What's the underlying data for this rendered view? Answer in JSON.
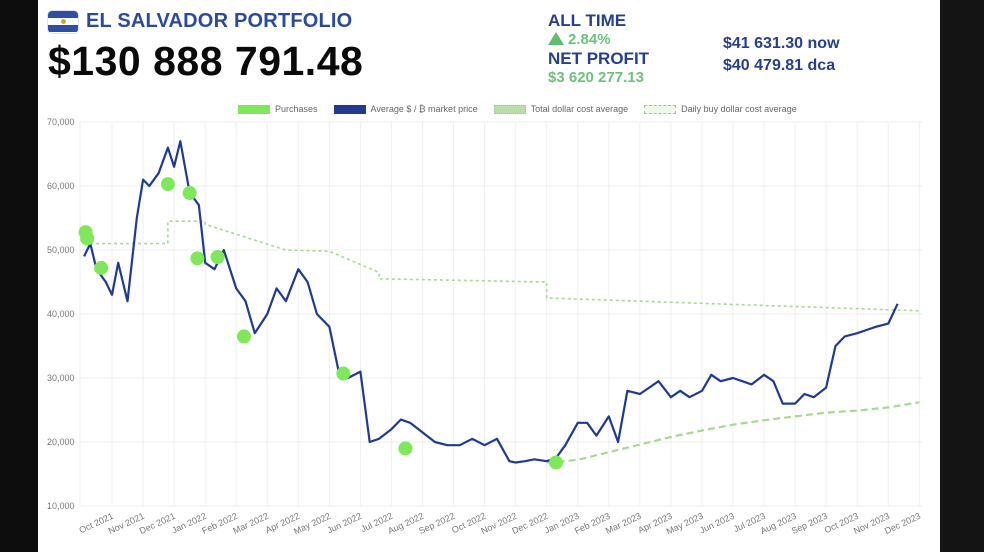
{
  "header": {
    "title": "EL SALVADOR PORTFOLIO",
    "flag_icon": "el-salvador-flag-icon",
    "total_value": "$130 888 791.48"
  },
  "stats": {
    "all_time_label": "ALL TIME",
    "all_time_change": "2.84%",
    "all_time_icon": "triangle-up-icon",
    "net_profit_label": "NET PROFIT",
    "net_profit_value": "$3 620 277.13",
    "price_now": "$41 631.30 now",
    "price_dca": "$40 479.81 dca"
  },
  "colors": {
    "brand_blue": "#2c4a9a",
    "price_line": "#1f3a8f",
    "purchase_dot": "#7ee85a",
    "dca_line": "#a8d98f",
    "positive": "#6cc27a"
  },
  "chart_data": {
    "type": "line",
    "title": "",
    "xlabel": "",
    "ylabel": "",
    "ylim": [
      10000,
      70000
    ],
    "grid": true,
    "legend_position": "top",
    "legend": [
      {
        "label": "Purchases",
        "color": "#7ee85a",
        "style": "solid"
      },
      {
        "label": "Average $ / ₿ market price",
        "color": "#1f3a8f",
        "style": "solid"
      },
      {
        "label": "Total dollar cost average",
        "color": "#a8d98f",
        "style": "dotted"
      },
      {
        "label": "Daily buy dollar cost average",
        "color": "#a8d98f",
        "style": "dashed"
      }
    ],
    "y_ticks": [
      "70,000",
      "60,000",
      "50,000",
      "40,000",
      "30,000",
      "20,000",
      "10,000"
    ],
    "categories": [
      "Oct 2021",
      "Nov 2021",
      "Dec 2021",
      "Jan 2022",
      "Feb 2022",
      "Mar 2022",
      "Apr 2022",
      "May 2022",
      "Jun 2022",
      "Jul 2022",
      "Aug 2022",
      "Sep 2022",
      "Oct 2022",
      "Nov 2022",
      "Dec 2022",
      "Jan 2023",
      "Feb 2023",
      "Mar 2023",
      "Apr 2023",
      "May 2023",
      "Jun 2023",
      "Jul 2023",
      "Aug 2023",
      "Sep 2023",
      "Oct 2023",
      "Nov 2023",
      "Dec 2023"
    ],
    "series": [
      {
        "name": "Average $ / ₿ market price",
        "x_month_index": [
          -0.9,
          -0.7,
          -0.5,
          -0.2,
          0.0,
          0.2,
          0.5,
          0.8,
          1.0,
          1.2,
          1.5,
          1.8,
          2.0,
          2.2,
          2.5,
          2.8,
          3.0,
          3.3,
          3.6,
          4.0,
          4.3,
          4.6,
          5.0,
          5.3,
          5.6,
          6.0,
          6.3,
          6.6,
          7.0,
          7.3,
          7.6,
          8.0,
          8.3,
          8.6,
          9.0,
          9.3,
          9.6,
          10.0,
          10.4,
          10.8,
          11.2,
          11.6,
          12.0,
          12.4,
          12.8,
          13.0,
          13.3,
          13.6,
          14.0,
          14.3,
          14.6,
          15.0,
          15.3,
          15.6,
          16.0,
          16.3,
          16.6,
          17.0,
          17.3,
          17.6,
          18.0,
          18.3,
          18.6,
          19.0,
          19.3,
          19.6,
          20.0,
          20.3,
          20.6,
          21.0,
          21.3,
          21.6,
          22.0,
          22.3,
          22.6,
          23.0,
          23.3,
          23.6,
          24.0,
          24.3,
          24.6,
          25.0,
          25.3,
          25.6,
          26.0
        ],
        "values": [
          49000,
          51000,
          47000,
          45000,
          43000,
          48000,
          42000,
          55000,
          61000,
          60000,
          62000,
          66000,
          63000,
          67000,
          59000,
          57000,
          48000,
          47000,
          50000,
          44000,
          42000,
          37000,
          40000,
          44000,
          42000,
          47000,
          45000,
          40000,
          38000,
          31000,
          30000,
          31000,
          20000,
          20500,
          22000,
          23500,
          23000,
          21500,
          20000,
          19500,
          19500,
          20500,
          19500,
          20500,
          17000,
          16800,
          17000,
          17300,
          17000,
          17500,
          19500,
          23000,
          23000,
          21000,
          24000,
          20000,
          28000,
          27500,
          28500,
          29500,
          27000,
          28000,
          27000,
          28000,
          30500,
          29500,
          30000,
          29500,
          29000,
          30500,
          29500,
          26000,
          26000,
          27500,
          27000,
          28500,
          35000,
          36500,
          37000,
          37500,
          38000,
          38500,
          41600
        ]
      },
      {
        "name": "Total dollar cost average",
        "x_month_index": [
          -0.9,
          0.0,
          0.0,
          1.8,
          1.8,
          3.0,
          3.0,
          5.6,
          7.0,
          8.6,
          8.6,
          14.0,
          14.0,
          26.0
        ],
        "values": [
          51000,
          51000,
          51000,
          51000,
          54500,
          54500,
          54000,
          50000,
          49800,
          46500,
          45500,
          45000,
          42500,
          40500
        ]
      },
      {
        "name": "Daily buy dollar cost average",
        "x_month_index": [
          14.0,
          15.0,
          16.0,
          17.0,
          18.0,
          19.0,
          20.0,
          21.0,
          22.0,
          23.0,
          24.0,
          25.0,
          26.0
        ],
        "values": [
          16800,
          17200,
          18400,
          19600,
          20800,
          21800,
          22700,
          23400,
          24000,
          24600,
          24900,
          25400,
          26200
        ]
      },
      {
        "name": "Purchases",
        "x_month_index": [
          -0.85,
          -0.8,
          -0.35,
          1.8,
          2.5,
          2.75,
          3.4,
          4.25,
          7.45,
          9.45,
          14.3
        ],
        "values": [
          52800,
          51800,
          47200,
          60300,
          58900,
          48700,
          48900,
          36500,
          30700,
          19000,
          16800
        ]
      }
    ]
  }
}
